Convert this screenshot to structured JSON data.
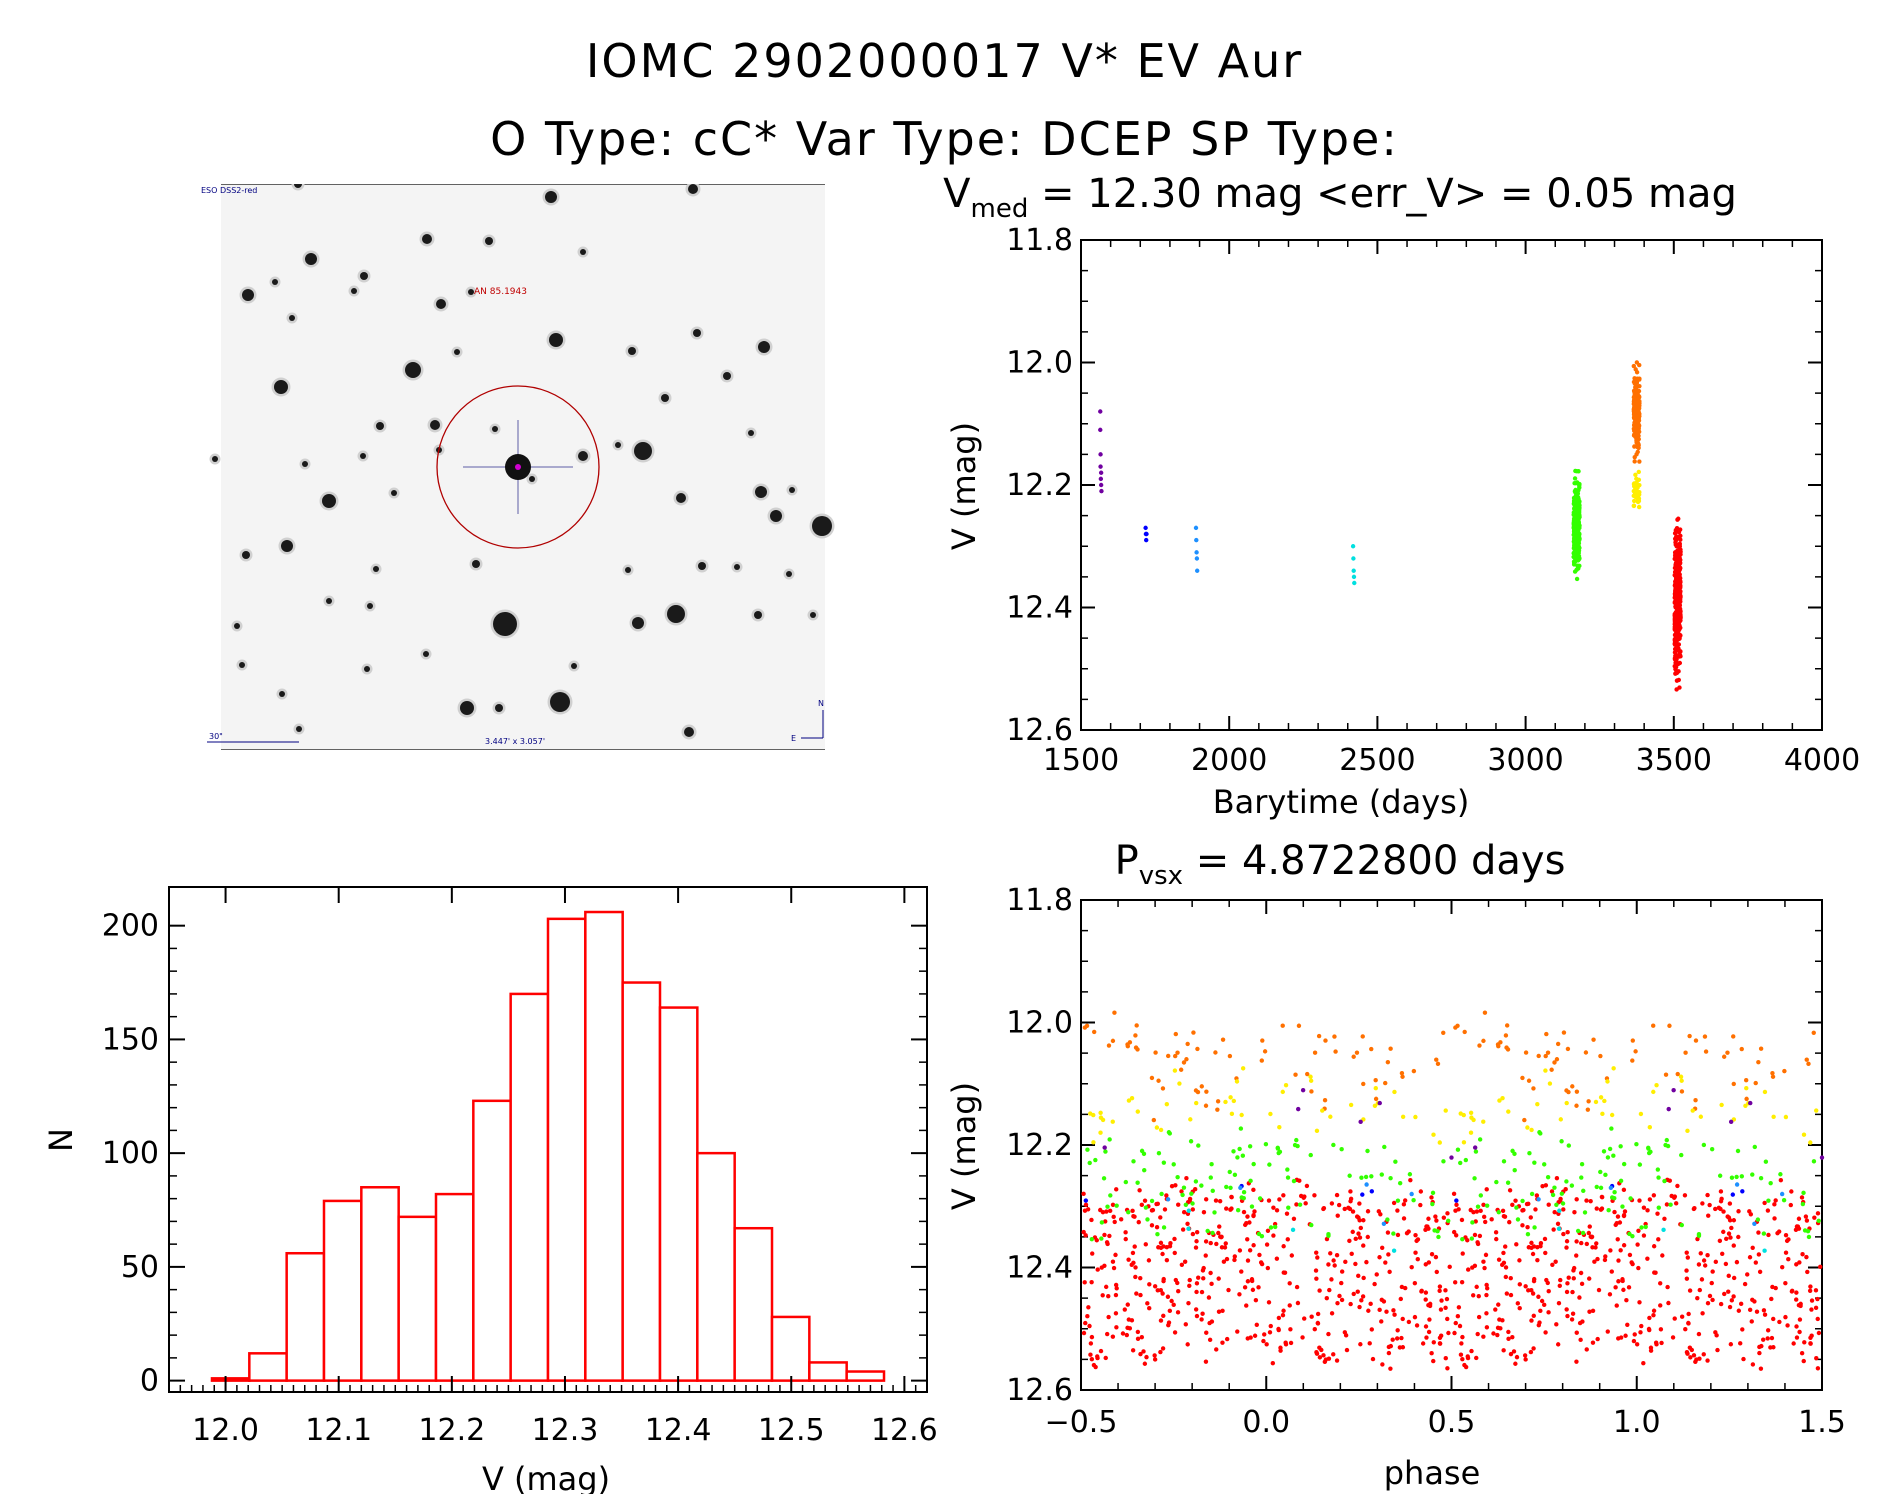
{
  "header": {
    "line1": "IOMC 2902000017   V* EV Aur",
    "line2": "O Type: cC*  Var Type: DCEP  SP Type:"
  },
  "finder": {
    "survey_label": "ESO DSS2-red",
    "object_label": "AN 85.1943",
    "scale_label": "30\"",
    "fov_label": "3.447' x 3.057'",
    "compass_n": "N",
    "compass_e": "E"
  },
  "colors": {
    "red": "#ff0000",
    "orange": "#ff7000",
    "yellow": "#ffee00",
    "green": "#33ff00",
    "cyan": "#00e0e0",
    "azure": "#1e90ff",
    "blue": "#0000ff",
    "purple": "#7000a0",
    "circle": "#b00000"
  },
  "chart_data": [
    {
      "type": "scatter",
      "id": "light_curve",
      "title_prefix": "V",
      "title_sub": "med",
      "title_suffix": " = 12.30 mag <err_V> = 0.05 mag",
      "xlabel": "Barytime (days)",
      "ylabel": "V (mag)",
      "xlim": [
        1500,
        4000
      ],
      "ylim": [
        12.6,
        11.8
      ],
      "xticks": [
        "1500",
        "2000",
        "2500",
        "3000",
        "3500",
        "4000"
      ],
      "yticks": [
        "11.8",
        "12.0",
        "12.2",
        "12.4",
        "12.6"
      ],
      "series": [
        {
          "name": "season1",
          "color": "purple",
          "x": [
            1565,
            1565,
            1566,
            1566,
            1567,
            1568,
            1568,
            1569
          ],
          "y": [
            12.08,
            12.11,
            12.15,
            12.17,
            12.19,
            12.2,
            12.18,
            12.21
          ]
        },
        {
          "name": "season2",
          "color": "blue",
          "x": [
            1718,
            1719,
            1720,
            1721
          ],
          "y": [
            12.27,
            12.28,
            12.29,
            12.28
          ]
        },
        {
          "name": "season3",
          "color": "azure",
          "x": [
            1888,
            1889,
            1890,
            1891,
            1892
          ],
          "y": [
            12.27,
            12.29,
            12.31,
            12.32,
            12.34
          ]
        },
        {
          "name": "season4",
          "color": "cyan",
          "x": [
            2418,
            2419,
            2420,
            2421,
            2422
          ],
          "y": [
            12.3,
            12.32,
            12.34,
            12.35,
            12.36
          ]
        },
        {
          "name": "season5",
          "color": "green",
          "x_range": [
            3162,
            3182
          ],
          "y_range": [
            12.16,
            12.38
          ],
          "n": 280
        },
        {
          "name": "season6",
          "color": "orange",
          "x_range": [
            3365,
            3384
          ],
          "y_range": [
            11.99,
            12.18
          ],
          "n": 200
        },
        {
          "name": "season6b",
          "color": "yellow",
          "x_range": [
            3365,
            3384
          ],
          "y_range": [
            12.17,
            12.25
          ],
          "n": 40
        },
        {
          "name": "season7",
          "color": "red",
          "x_range": [
            3503,
            3523
          ],
          "y_range": [
            12.23,
            12.55
          ],
          "n": 420
        }
      ]
    },
    {
      "type": "scatter",
      "id": "phase_plot",
      "title_prefix": "P",
      "title_sub": "vsx",
      "title_suffix": " = 4.8722800 days",
      "xlabel": "phase",
      "ylabel": "V (mag)",
      "xlim": [
        -0.5,
        1.5
      ],
      "ylim": [
        12.6,
        11.8
      ],
      "xticks": [
        "−0.5",
        "0.0",
        "0.5",
        "1.0",
        "1.5"
      ],
      "yticks": [
        "11.8",
        "12.0",
        "12.2",
        "12.4",
        "12.6"
      ],
      "period_days": 4.87228,
      "series": [
        {
          "name": "red",
          "color": "red",
          "y_range": [
            12.27,
            12.55
          ]
        },
        {
          "name": "orange",
          "color": "orange",
          "y_range": [
            11.99,
            12.14
          ]
        },
        {
          "name": "yellow",
          "color": "yellow",
          "y_range": [
            12.09,
            12.18
          ]
        },
        {
          "name": "green",
          "color": "green",
          "y_range": [
            12.18,
            12.34
          ]
        },
        {
          "name": "purple",
          "color": "purple",
          "y_range": [
            12.09,
            12.22
          ]
        },
        {
          "name": "blue",
          "color": "blue",
          "y_range": [
            12.27,
            12.3
          ]
        },
        {
          "name": "cyan",
          "color": "cyan",
          "y_range": [
            12.31,
            12.36
          ]
        },
        {
          "name": "azure",
          "color": "azure",
          "y_range": [
            12.27,
            12.33
          ]
        }
      ]
    },
    {
      "type": "bar",
      "id": "histogram",
      "xlabel": "V (mag)",
      "ylabel": "N",
      "xlim": [
        11.95,
        12.62
      ],
      "ylim": [
        -5,
        217
      ],
      "xticks": [
        "12.0",
        "12.1",
        "12.2",
        "12.3",
        "12.4",
        "12.5",
        "12.6"
      ],
      "yticks": [
        "0",
        "50",
        "100",
        "150",
        "200"
      ],
      "bin_width": 0.033,
      "bin_left": [
        11.988,
        12.021,
        12.054,
        12.087,
        12.12,
        12.153,
        12.186,
        12.219,
        12.252,
        12.285,
        12.318,
        12.351,
        12.384,
        12.417,
        12.45,
        12.483,
        12.516,
        12.549
      ],
      "values": [
        1,
        12,
        56,
        79,
        85,
        72,
        82,
        123,
        170,
        203,
        206,
        175,
        164,
        100,
        67,
        28,
        8,
        4
      ]
    }
  ]
}
